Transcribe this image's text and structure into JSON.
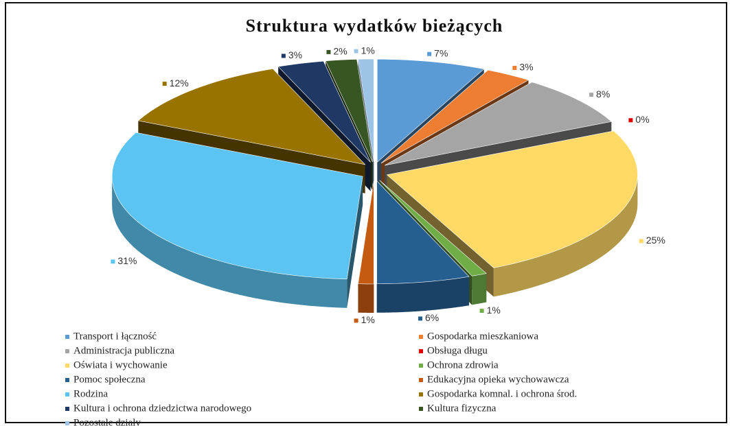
{
  "chart_data": {
    "type": "pie",
    "title": "Struktura wydatków bieżących",
    "categories": [
      "Transport i łączność",
      "Gospodarka mieszkaniowa",
      "Administracja publiczna",
      "Obsługa długu",
      "Oświata i wychowanie",
      "Ochrona zdrowia",
      "Pomoc społeczna",
      "Edukacyjna opieka wychowawcza",
      "Rodzina",
      "Gospodarka komnal. i ochrona środ.",
      "Kultura i ochrona dziedzictwa narodowego",
      "Kultura fizyczna",
      "Pozostałe działy"
    ],
    "values": [
      7,
      3,
      8,
      0,
      25,
      1,
      6,
      1,
      31,
      12,
      3,
      2,
      1
    ],
    "value_labels": [
      "7%",
      "3%",
      "8%",
      "0%",
      "25%",
      "1%",
      "6%",
      "1%",
      "31%",
      "12%",
      "3%",
      "2%",
      "1%"
    ],
    "colors": [
      "#5b9bd5",
      "#ed7d31",
      "#a5a5a5",
      "#e00000",
      "#ffd966",
      "#70ad47",
      "#255e91",
      "#c55a11",
      "#5bc4f2",
      "#997300",
      "#1f3864",
      "#375623",
      "#9dc3e6"
    ],
    "legend": "bottom"
  }
}
